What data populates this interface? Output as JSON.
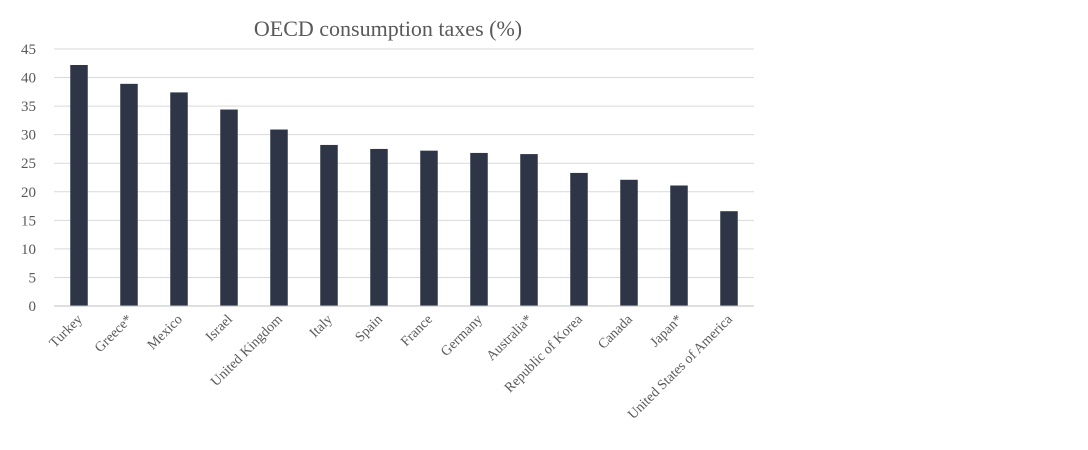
{
  "chart_data": {
    "type": "bar",
    "title": "OECD consumption taxes (%)",
    "xlabel": "",
    "ylabel": "",
    "categories": [
      "Turkey",
      "Greece*",
      "Mexico",
      "Israel",
      "United Kingdom",
      "Italy",
      "Spain",
      "France",
      "Germany",
      "Australia*",
      "Republic of Korea",
      "Canada",
      "Japan*",
      "United States of America"
    ],
    "values": [
      42.2,
      38.9,
      37.4,
      34.4,
      30.9,
      28.2,
      27.5,
      27.2,
      26.8,
      26.6,
      23.3,
      22.1,
      21.1,
      16.6
    ],
    "ylim": [
      0,
      45
    ],
    "yticks": [
      0,
      5,
      10,
      15,
      20,
      25,
      30,
      35,
      40,
      45
    ],
    "grid": true,
    "legend": "none",
    "bar_color": "#2e3546",
    "text_color": "#595959",
    "grid_color": "#d9d9d9"
  }
}
